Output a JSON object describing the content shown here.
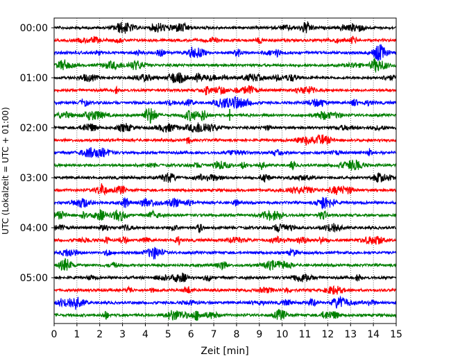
{
  "chart_data": {
    "type": "line",
    "title": "",
    "xlabel": "Zeit  [min]",
    "ylabel": "UTC (Lokalzeit = UTC + 01:00)",
    "xlim": [
      0,
      15
    ],
    "xticks": [
      "0",
      "1",
      "2",
      "3",
      "4",
      "5",
      "6",
      "7",
      "8",
      "9",
      "10",
      "11",
      "12",
      "13",
      "14",
      "15"
    ],
    "ytick_labels": [
      "00:00",
      "01:00",
      "02:00",
      "03:00",
      "04:00",
      "05:00"
    ],
    "grid": "vertical-dotted",
    "trace_colors": [
      "#000000",
      "#ff0000",
      "#0000ff",
      "#008000"
    ],
    "trace_rows": 24,
    "trace_interval_minutes": 15,
    "spikes": [
      {
        "row": 7,
        "minute": 7.7,
        "color": "#008000"
      }
    ]
  }
}
